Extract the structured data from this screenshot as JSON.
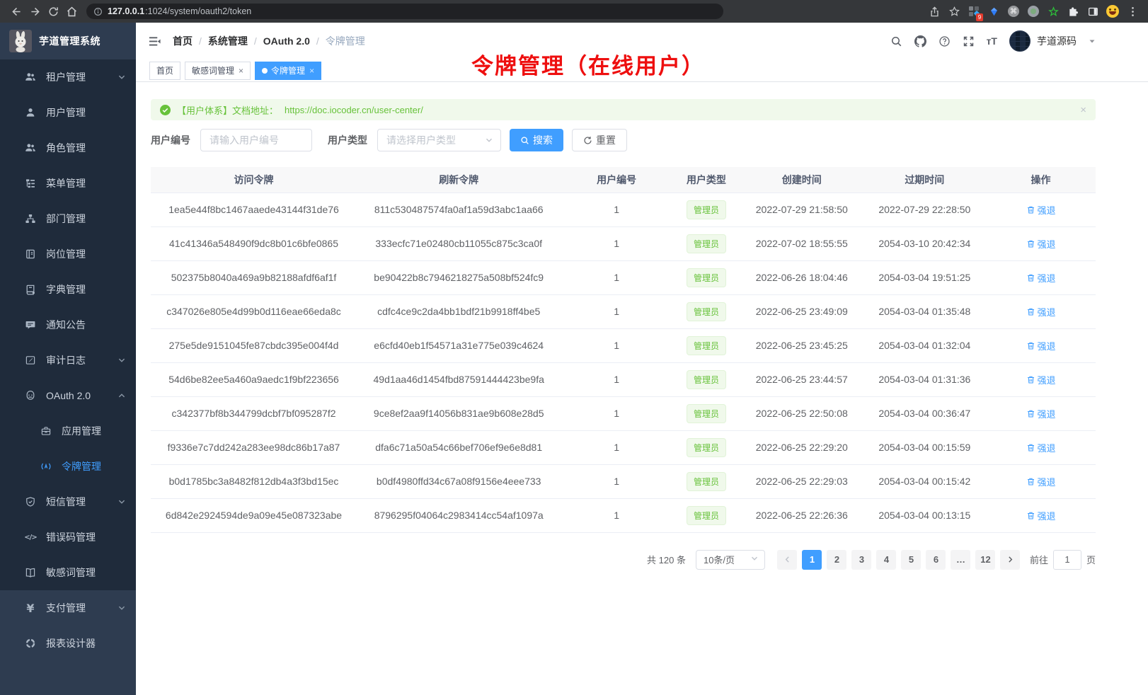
{
  "browser": {
    "url_host": "127.0.0.1",
    "url_rest": ":1024/system/oauth2/token",
    "extension_badge": "9"
  },
  "sidebar": {
    "title": "芋道管理系统",
    "items": [
      {
        "key": "tenant",
        "icon": "users-icon",
        "label": "租户管理",
        "chevron": "down"
      },
      {
        "key": "user",
        "icon": "user-icon",
        "label": "用户管理"
      },
      {
        "key": "role",
        "icon": "users-icon",
        "label": "角色管理"
      },
      {
        "key": "menu",
        "icon": "menu-tree-icon",
        "label": "菜单管理"
      },
      {
        "key": "dept",
        "icon": "org-icon",
        "label": "部门管理"
      },
      {
        "key": "post",
        "icon": "post-icon",
        "label": "岗位管理"
      },
      {
        "key": "dict",
        "icon": "dict-icon",
        "label": "字典管理"
      },
      {
        "key": "notice",
        "icon": "notice-icon",
        "label": "通知公告"
      },
      {
        "key": "audit-log",
        "icon": "audit-icon",
        "label": "审计日志",
        "chevron": "down"
      },
      {
        "key": "oauth2",
        "icon": "oauth-icon",
        "label": "OAuth 2.0",
        "chevron": "up"
      },
      {
        "key": "oauth2-app",
        "icon": "app-icon",
        "label": "应用管理",
        "child": true
      },
      {
        "key": "oauth2-token",
        "icon": "token-icon",
        "label": "令牌管理",
        "child": true,
        "active": true
      },
      {
        "key": "sms",
        "icon": "sms-icon",
        "label": "短信管理",
        "chevron": "down"
      },
      {
        "key": "errcode",
        "icon": "errcode-icon",
        "label": "错误码管理"
      },
      {
        "key": "sensitive-word",
        "icon": "sensitive-icon",
        "label": "敏感词管理"
      }
    ],
    "bottom_items": [
      {
        "key": "pay",
        "icon": "pay-icon",
        "label": "支付管理",
        "chevron": "down"
      },
      {
        "key": "report",
        "icon": "report-icon",
        "label": "报表设计器"
      }
    ]
  },
  "topbar": {
    "breadcrumb": [
      {
        "key": "home",
        "label": "首页",
        "sep": true
      },
      {
        "key": "system",
        "label": "系统管理",
        "sep": true
      },
      {
        "key": "oauth2",
        "label": "OAuth 2.0",
        "sep": true
      },
      {
        "key": "token",
        "label": "令牌管理",
        "last": true
      }
    ],
    "username": "芋道源码"
  },
  "tabs": [
    {
      "key": "home",
      "label": "首页"
    },
    {
      "key": "sensitive-word",
      "label": "敏感词管理",
      "closable": true
    },
    {
      "key": "token",
      "label": "令牌管理",
      "closable": true,
      "active": true
    }
  ],
  "annotation": "令牌管理（在线用户）",
  "alert": {
    "text": "【用户体系】文档地址：",
    "link": "https://doc.iocoder.cn/user-center/"
  },
  "filters": {
    "user_id_label": "用户编号",
    "user_id_placeholder": "请输入用户编号",
    "user_type_label": "用户类型",
    "user_type_placeholder": "请选择用户类型",
    "search_label": "搜索",
    "reset_label": "重置"
  },
  "table": {
    "headers": [
      "访问令牌",
      "刷新令牌",
      "用户编号",
      "用户类型",
      "创建时间",
      "过期时间",
      "操作"
    ],
    "rows": [
      {
        "access": "1ea5e44f8bc1467aaede43144f31de76",
        "refresh": "811c530487574fa0af1a59d3abc1aa66",
        "user_id": "1",
        "user_type": "管理员",
        "created": "2022-07-29 21:58:50",
        "expires": "2022-07-29 22:28:50",
        "action": "强退"
      },
      {
        "access": "41c41346a548490f9dc8b01c6bfe0865",
        "refresh": "333ecfc71e02480cb11055c875c3ca0f",
        "user_id": "1",
        "user_type": "管理员",
        "created": "2022-07-02 18:55:55",
        "expires": "2054-03-10 20:42:34",
        "action": "强退"
      },
      {
        "access": "502375b8040a469a9b82188afdf6af1f",
        "refresh": "be90422b8c7946218275a508bf524fc9",
        "user_id": "1",
        "user_type": "管理员",
        "created": "2022-06-26 18:04:46",
        "expires": "2054-03-04 19:51:25",
        "action": "强退"
      },
      {
        "access": "c347026e805e4d99b0d116eae66eda8c",
        "refresh": "cdfc4ce9c2da4bb1bdf21b9918ff4be5",
        "user_id": "1",
        "user_type": "管理员",
        "created": "2022-06-25 23:49:09",
        "expires": "2054-03-04 01:35:48",
        "action": "强退"
      },
      {
        "access": "275e5de9151045fe87cbdc395e004f4d",
        "refresh": "e6cfd40eb1f54571a31e775e039c4624",
        "user_id": "1",
        "user_type": "管理员",
        "created": "2022-06-25 23:45:25",
        "expires": "2054-03-04 01:32:04",
        "action": "强退"
      },
      {
        "access": "54d6be82ee5a460a9aedc1f9bf223656",
        "refresh": "49d1aa46d1454fbd87591444423be9fa",
        "user_id": "1",
        "user_type": "管理员",
        "created": "2022-06-25 23:44:57",
        "expires": "2054-03-04 01:31:36",
        "action": "强退"
      },
      {
        "access": "c342377bf8b344799dcbf7bf095287f2",
        "refresh": "9ce8ef2aa9f14056b831ae9b608e28d5",
        "user_id": "1",
        "user_type": "管理员",
        "created": "2022-06-25 22:50:08",
        "expires": "2054-03-04 00:36:47",
        "action": "强退"
      },
      {
        "access": "f9336e7c7dd242a283ee98dc86b17a87",
        "refresh": "dfa6c71a50a54c66bef706ef9e6e8d81",
        "user_id": "1",
        "user_type": "管理员",
        "created": "2022-06-25 22:29:20",
        "expires": "2054-03-04 00:15:59",
        "action": "强退"
      },
      {
        "access": "b0d1785bc3a8482f812db4a3f3bd15ec",
        "refresh": "b0df4980ffd34c67a08f9156e4eee733",
        "user_id": "1",
        "user_type": "管理员",
        "created": "2022-06-25 22:29:03",
        "expires": "2054-03-04 00:15:42",
        "action": "强退"
      },
      {
        "access": "6d842e2924594de9a09e45e087323abe",
        "refresh": "8796295f04064c2983414cc54af1097a",
        "user_id": "1",
        "user_type": "管理员",
        "created": "2022-06-25 22:26:36",
        "expires": "2054-03-04 00:13:15",
        "action": "强退"
      }
    ]
  },
  "pagination": {
    "total": "共 120 条",
    "page_size": "10条/页",
    "pages": [
      {
        "label": "1",
        "active": true
      },
      {
        "label": "2"
      },
      {
        "label": "3"
      },
      {
        "label": "4"
      },
      {
        "label": "5"
      },
      {
        "label": "6"
      },
      {
        "label": "…",
        "ellipsis": true
      },
      {
        "label": "12"
      }
    ],
    "goto_label": "前往",
    "goto_value": "1",
    "goto_unit": "页"
  },
  "colors": {
    "accent": "#409eff",
    "success": "#67c23a",
    "tag_bg": "#f0f9eb",
    "sidebar_bg": "#1f2b3b",
    "sidebar_light_bg": "#2e3c50",
    "annotation_red": "#ee0f0f"
  }
}
